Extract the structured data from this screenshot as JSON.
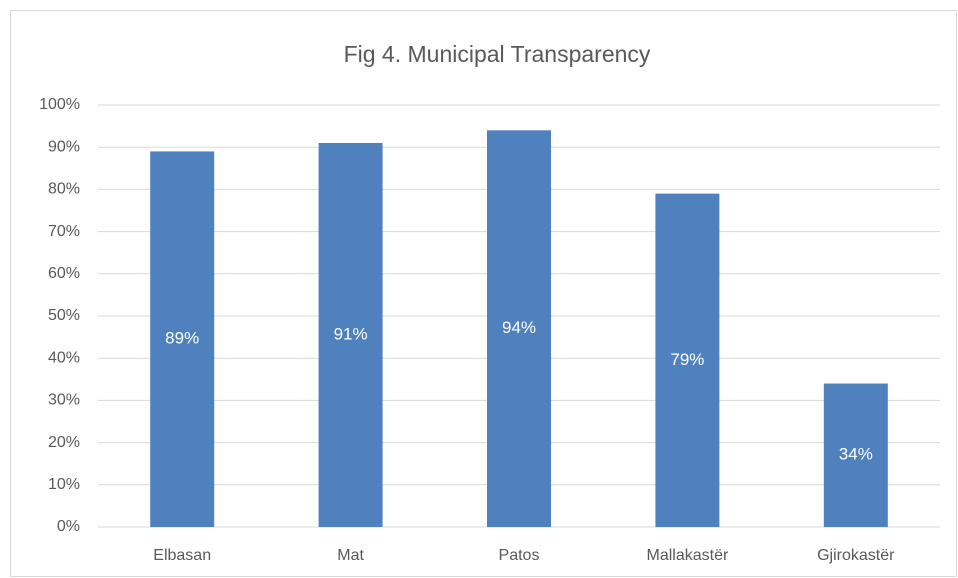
{
  "chart_data": {
    "type": "bar",
    "title": "Fig 4. Municipal Transparency",
    "categories": [
      "Elbasan",
      "Mat",
      "Patos",
      "Mallakastër",
      "Gjirokastër"
    ],
    "values": [
      89,
      91,
      94,
      79,
      34
    ],
    "value_labels": [
      "89%",
      "91%",
      "94%",
      "79%",
      "34%"
    ],
    "color": "#4e81bd",
    "ylim": [
      0,
      100
    ],
    "yticks": [
      {
        "value": 0,
        "label": "0%"
      },
      {
        "value": 10,
        "label": "10%"
      },
      {
        "value": 20,
        "label": "20%"
      },
      {
        "value": 30,
        "label": "30%"
      },
      {
        "value": 40,
        "label": "40%"
      },
      {
        "value": 50,
        "label": "50%"
      },
      {
        "value": 60,
        "label": "60%"
      },
      {
        "value": 70,
        "label": "70%"
      },
      {
        "value": 80,
        "label": "80%"
      },
      {
        "value": 90,
        "label": "90%"
      },
      {
        "value": 100,
        "label": "100%"
      }
    ],
    "grid": true
  }
}
